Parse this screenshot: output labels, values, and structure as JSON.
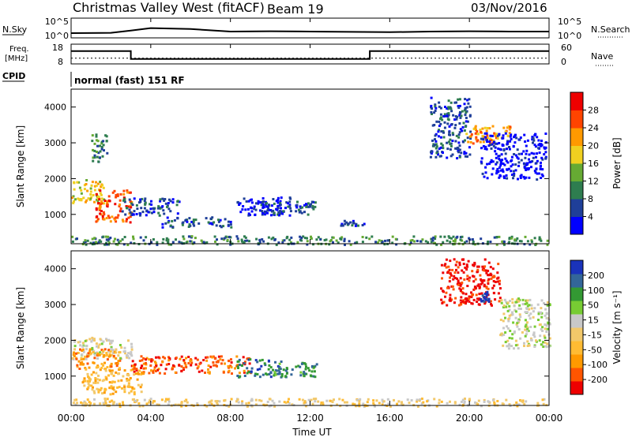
{
  "header": {
    "station": "Christmas Valley West (fitACF)",
    "beam": "Beam 19",
    "date": "03/Nov/2016"
  },
  "panels": {
    "nsky": {
      "label": "N.Sky",
      "left_ticks": [
        "10^5",
        "10^0"
      ],
      "right_ticks": [
        "10^5",
        "10^0"
      ],
      "right_label": "N.Search"
    },
    "freq": {
      "label_line1": "Freq.",
      "label_line2": "[MHz]",
      "left_ticks": [
        "18",
        "8"
      ],
      "right_ticks": [
        "60",
        "0"
      ],
      "right_label": "Nave"
    },
    "cpid": {
      "label": "CPID",
      "text": "normal (fast) 151 RF"
    }
  },
  "colors": {
    "power": [
      "#0000ff",
      "#1f3f99",
      "#2e7d4f",
      "#66aa33",
      "#f0d020",
      "#ff9900",
      "#ff4400",
      "#ee0000"
    ],
    "velocity": [
      "#ee0000",
      "#ff5500",
      "#ff9900",
      "#ffbb33",
      "#f2c86a",
      "#c8c8c8",
      "#77cc33",
      "#339933",
      "#336699",
      "#1a33bb"
    ]
  },
  "chart_data": [
    {
      "type": "line",
      "title": "N.Sky / N.Search",
      "x": [
        "00:00",
        "02:00",
        "03:00",
        "04:00",
        "06:00",
        "08:00",
        "10:00",
        "12:00",
        "14:00",
        "16:00",
        "18:00",
        "20:00",
        "22:00",
        "24:00"
      ],
      "series": [
        {
          "name": "N.Sky",
          "values": [
            1.0,
            1.1,
            1.8,
            2.6,
            2.3,
            1.5,
            1.6,
            1.5,
            1.4,
            1.3,
            1.5,
            1.6,
            1.5,
            1.5
          ]
        }
      ],
      "ylabel": "N.Sky",
      "y_ticks": [
        "10^0",
        "10^5"
      ],
      "scale": "log"
    },
    {
      "type": "line",
      "title": "Freq. / Nave",
      "series": [
        {
          "name": "Freq.",
          "x": [
            "00:00",
            "03:00",
            "03:00",
            "15:00",
            "15:00",
            "24:00"
          ],
          "values": [
            14.8,
            14.8,
            10.0,
            10.0,
            14.8,
            14.8
          ]
        },
        {
          "name": "Nave",
          "x": [
            "00:00",
            "24:00"
          ],
          "values": [
            15,
            15
          ]
        }
      ],
      "ylabel": "Freq. [MHz]",
      "y_ticks_left": [
        8,
        18
      ],
      "y_ticks_right": [
        0,
        60
      ]
    },
    {
      "type": "heatmap",
      "title": "Power [dB]",
      "xlabel": "",
      "ylabel": "Slant Range [km]",
      "x_ticks": [
        "00:00",
        "04:00",
        "08:00",
        "12:00",
        "16:00",
        "20:00",
        "00:00"
      ],
      "y_ticks": [
        1000,
        2000,
        3000,
        4000
      ],
      "ylim": [
        180,
        4500
      ],
      "colorbar_ticks": [
        4,
        8,
        12,
        16,
        20,
        24,
        28
      ],
      "colorbar_label": "Power [dB]",
      "regions": [
        {
          "t0": 0.0,
          "t1": 1.6,
          "r0": 1300,
          "r1": 2000,
          "level": 4
        },
        {
          "t0": 1.2,
          "t1": 3.0,
          "r0": 800,
          "r1": 1700,
          "level": 6
        },
        {
          "t0": 1.0,
          "t1": 1.8,
          "r0": 2500,
          "r1": 3300,
          "level": 2
        },
        {
          "t0": 2.5,
          "t1": 5.5,
          "r0": 1000,
          "r1": 1500,
          "level": 1
        },
        {
          "t0": 4.5,
          "t1": 8.0,
          "r0": 650,
          "r1": 950,
          "level": 1
        },
        {
          "t0": 8.3,
          "t1": 11.0,
          "r0": 1000,
          "r1": 1500,
          "level": 0
        },
        {
          "t0": 9.5,
          "t1": 12.3,
          "r0": 1000,
          "r1": 1400,
          "level": 1
        },
        {
          "t0": 13.5,
          "t1": 14.7,
          "r0": 700,
          "r1": 850,
          "level": 1
        },
        {
          "t0": 18.0,
          "t1": 20.0,
          "r0": 2600,
          "r1": 4300,
          "level": 1
        },
        {
          "t0": 19.8,
          "t1": 22.0,
          "r0": 3000,
          "r1": 3500,
          "level": 5
        },
        {
          "t0": 20.5,
          "t1": 23.8,
          "r0": 2000,
          "r1": 3300,
          "level": 0
        },
        {
          "t0": 0.0,
          "t1": 24.0,
          "r0": 180,
          "r1": 420,
          "level": 2
        }
      ]
    },
    {
      "type": "heatmap",
      "title": "Velocity [m s^-1]",
      "xlabel": "Time UT",
      "ylabel": "Slant Range [km]",
      "x_ticks": [
        "00:00",
        "04:00",
        "08:00",
        "12:00",
        "16:00",
        "20:00",
        "00:00"
      ],
      "y_ticks": [
        1000,
        2000,
        3000,
        4000
      ],
      "ylim": [
        180,
        4500
      ],
      "colorbar_ticks": [
        -200,
        -100,
        -50,
        -15,
        15,
        50,
        100,
        200
      ],
      "colorbar_label": "Velocity [m s^-1]",
      "regions": [
        {
          "t0": 0.0,
          "t1": 3.0,
          "r0": 1500,
          "r1": 2100,
          "level": 5
        },
        {
          "t0": 0.0,
          "t1": 2.5,
          "r0": 1200,
          "r1": 1800,
          "level": 2
        },
        {
          "t0": 0.5,
          "t1": 3.5,
          "r0": 500,
          "r1": 1200,
          "level": 3
        },
        {
          "t0": 3.0,
          "t1": 9.0,
          "r0": 1100,
          "r1": 1600,
          "level": 1
        },
        {
          "t0": 8.3,
          "t1": 10.5,
          "r0": 1000,
          "r1": 1500,
          "level": 8
        },
        {
          "t0": 10.0,
          "t1": 12.3,
          "r0": 1000,
          "r1": 1400,
          "level": 7
        },
        {
          "t0": 18.5,
          "t1": 21.5,
          "r0": 3000,
          "r1": 4300,
          "level": 0
        },
        {
          "t0": 20.5,
          "t1": 21.0,
          "r0": 3100,
          "r1": 3400,
          "level": 9
        },
        {
          "t0": 21.5,
          "t1": 24.0,
          "r0": 1800,
          "r1": 3200,
          "level": 5
        },
        {
          "t0": 0.0,
          "t1": 24.0,
          "r0": 180,
          "r1": 400,
          "level": 4
        }
      ]
    }
  ],
  "axes": {
    "x_ticks": [
      "00:00",
      "04:00",
      "08:00",
      "12:00",
      "16:00",
      "20:00",
      "00:00"
    ],
    "xlabel": "Time UT",
    "ylabel": "Slant Range [km]",
    "y_ticks": [
      "1000",
      "2000",
      "3000",
      "4000"
    ],
    "power_label": "Power [dB]",
    "power_ticks": [
      "4",
      "8",
      "12",
      "16",
      "20",
      "24",
      "28"
    ],
    "velocity_label": "Velocity [m s⁻¹]",
    "velocity_ticks": [
      "-200",
      "-100",
      "-50",
      "-15",
      "15",
      "50",
      "100",
      "200"
    ]
  }
}
